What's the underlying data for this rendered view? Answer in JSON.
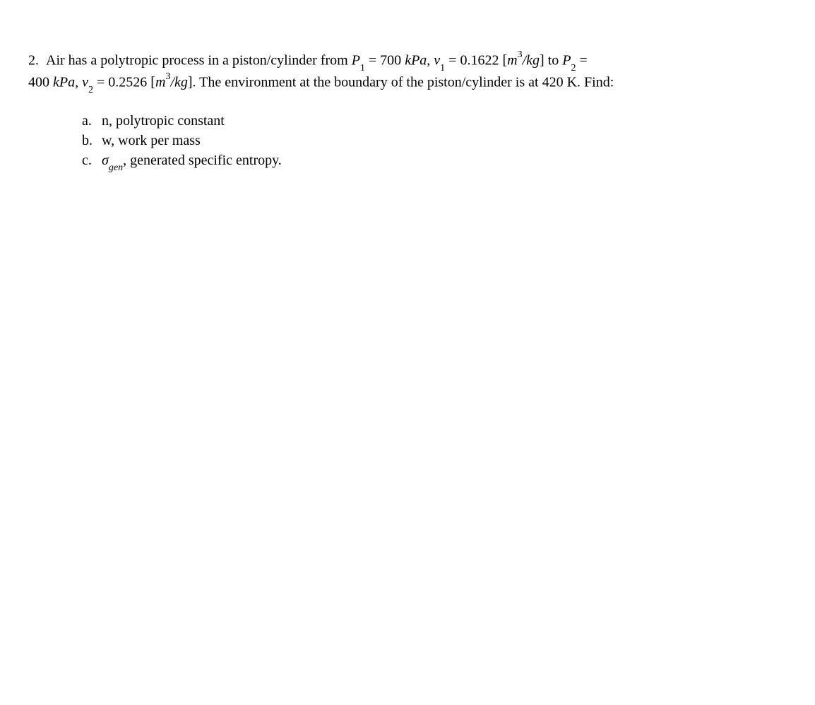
{
  "problem": {
    "number": "2.",
    "line1_prefix": "Air has a polytropic process in a piston/cylinder from ",
    "P1_var": "P",
    "P1_sub": "1",
    "eq1": " = 700 ",
    "unit_kPa": "kPa",
    "comma1": ", ",
    "v1_var": "v",
    "v1_sub": "1",
    "eq2": " = 0.1622 [",
    "m3_m": "m",
    "m3_sup": "3",
    "per_kg": "/kg",
    "bracket_close": "]",
    "to_text": " to ",
    "P2_var": "P",
    "P2_sub": "2",
    "eq3": " =",
    "line2_P2val": "400 ",
    "comma2": ", ",
    "v2_var": "v",
    "v2_sub": "2",
    "eq4": " = 0.2526 [",
    "line2_suffix": ". The environment at the boundary of the piston/cylinder is at 420 K. Find:"
  },
  "items": {
    "a": {
      "marker": "a.",
      "text": "n, polytropic constant"
    },
    "b": {
      "marker": "b.",
      "text": "w, work per mass"
    },
    "c": {
      "marker": "c.",
      "sigma": "σ",
      "sigma_sub": "gen",
      "comma": ", ",
      "text": "generated specific entropy."
    }
  }
}
